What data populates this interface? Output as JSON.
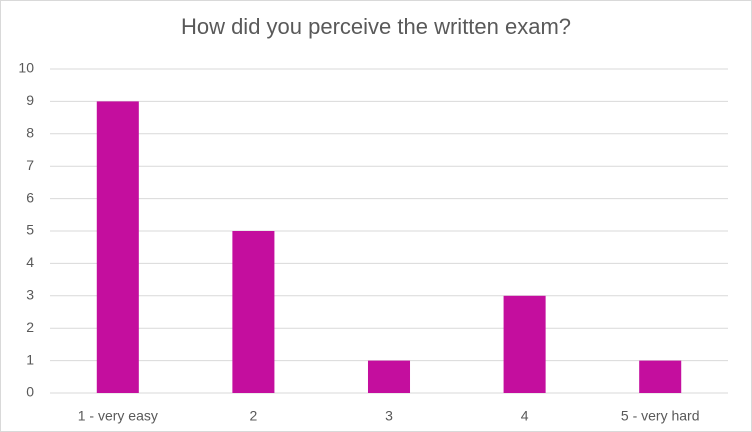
{
  "chart_data": {
    "type": "bar",
    "title": "How did you perceive the written exam?",
    "categories": [
      "1 - very easy",
      "2",
      "3",
      "4",
      "5 - very hard"
    ],
    "values": [
      9,
      5,
      1,
      3,
      1
    ],
    "color": "#c40e9e",
    "ylim": [
      0,
      10
    ],
    "yticks": [
      0,
      1,
      2,
      3,
      4,
      5,
      6,
      7,
      8,
      9,
      10
    ],
    "grid": true
  }
}
